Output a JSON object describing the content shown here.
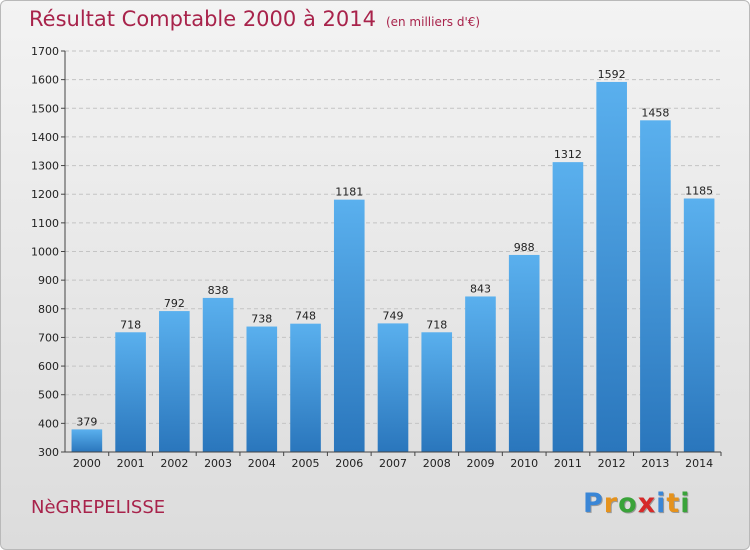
{
  "title": "Résultat Comptable 2000 à 2014",
  "subtitle": "(en milliers d'€)",
  "commune": "NèGREPELISSE",
  "logo": {
    "text": "Proxiti",
    "letter_colors": [
      "#3a86d6",
      "#e5921c",
      "#3aa33a",
      "#d62a2a",
      "#3a86d6",
      "#e5921c",
      "#3aa33a"
    ]
  },
  "colors": {
    "bar_light": "#5ab0ee",
    "bar_dark": "#2a76bc",
    "title": "#a8234b"
  },
  "chart_data": {
    "type": "bar",
    "title": "Résultat Comptable 2000 à 2014",
    "subtitle": "(en milliers d'€)",
    "xlabel": "",
    "ylabel": "",
    "categories": [
      "2000",
      "2001",
      "2002",
      "2003",
      "2004",
      "2005",
      "2006",
      "2007",
      "2008",
      "2009",
      "2010",
      "2011",
      "2012",
      "2013",
      "2014"
    ],
    "values": [
      379,
      718,
      792,
      838,
      738,
      748,
      1181,
      749,
      718,
      843,
      988,
      1312,
      1592,
      1458,
      1185
    ],
    "ylim": [
      300,
      1700
    ],
    "yticks": [
      300,
      400,
      500,
      600,
      700,
      800,
      900,
      1000,
      1100,
      1200,
      1300,
      1400,
      1500,
      1600,
      1700
    ],
    "grid": true,
    "legend": "none"
  }
}
